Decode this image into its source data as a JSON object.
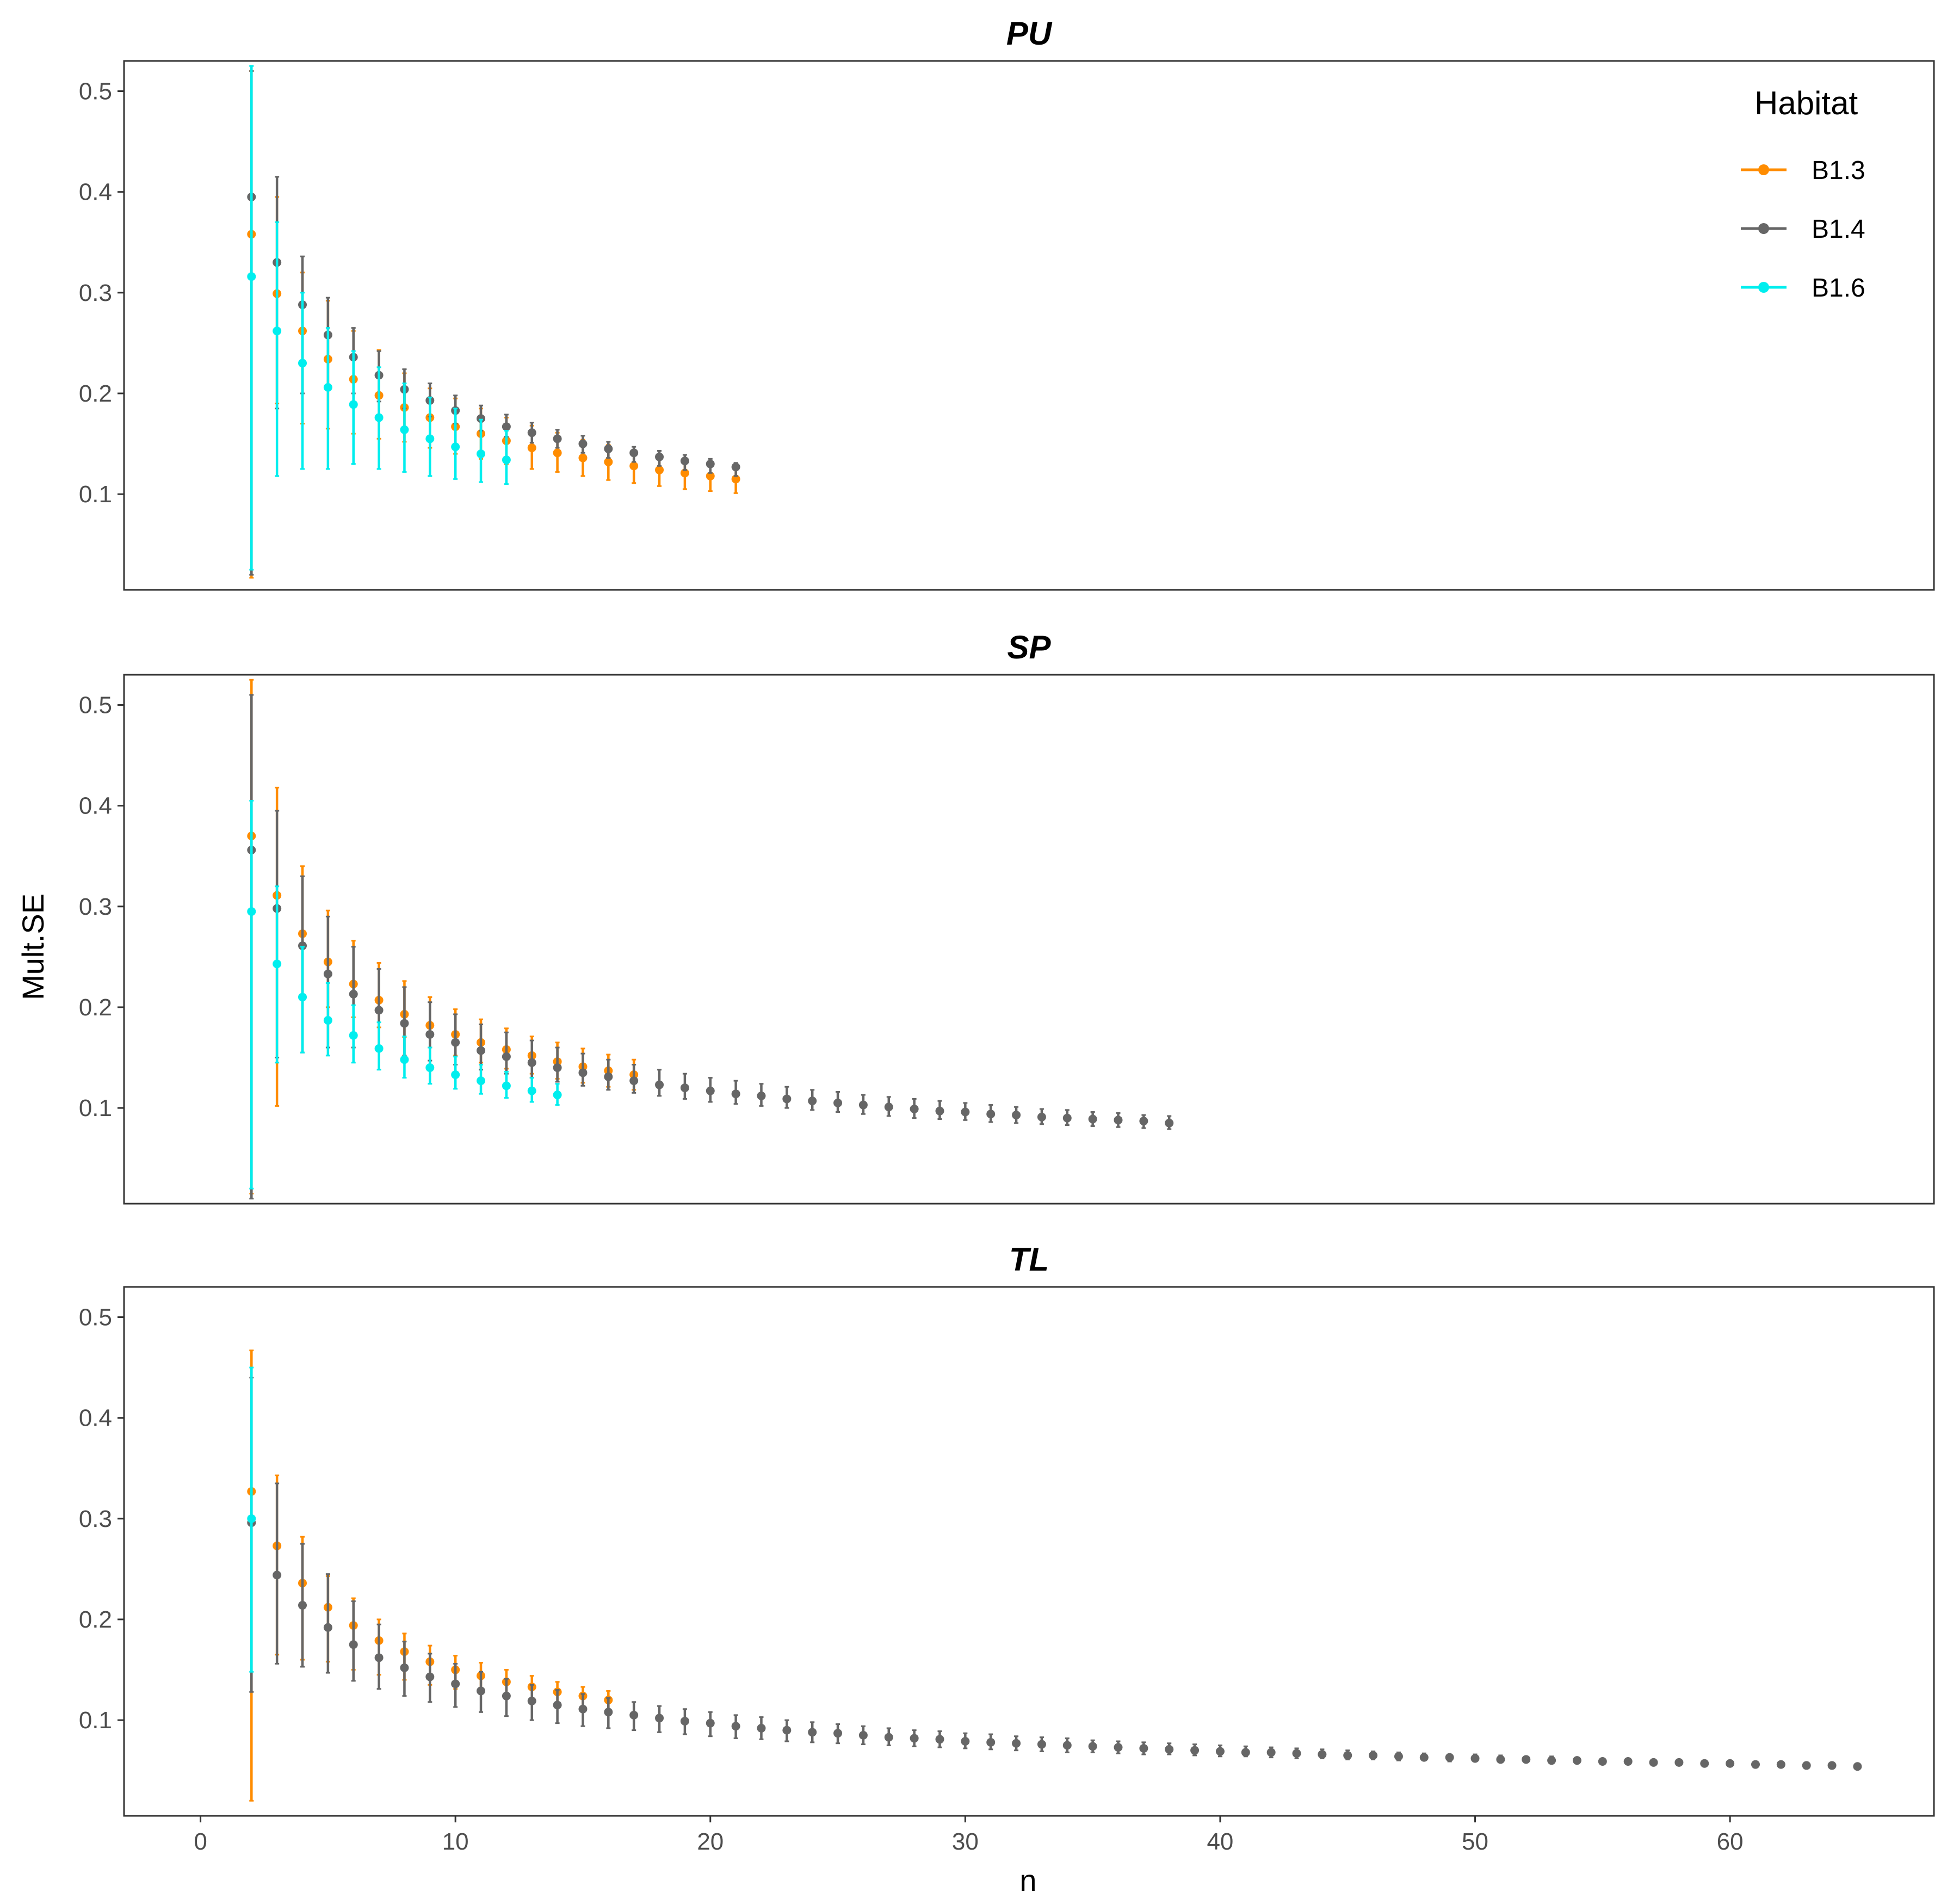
{
  "chart_data": {
    "type": "scatter",
    "ylabel": "Mult.SE",
    "xlabel": "n",
    "xlim": [
      -3,
      68
    ],
    "ylim": [
      0.005,
      0.53
    ],
    "xticks": [
      0,
      10,
      20,
      30,
      40,
      50,
      60
    ],
    "yticks": [
      0.1,
      0.2,
      0.3,
      0.4,
      0.5
    ],
    "legend": {
      "title": "Habitat",
      "position": "top-right",
      "entries": [
        {
          "name": "B1.3",
          "color": "#ff8c00"
        },
        {
          "name": "B1.4",
          "color": "#666666"
        },
        {
          "name": "B1.6",
          "color": "#00eeee"
        }
      ]
    },
    "panels": [
      {
        "title": "PU",
        "series": [
          {
            "name": "B1.3",
            "color": "#ff8c00",
            "n": [
              2,
              3,
              4,
              5,
              6,
              7,
              8,
              9,
              10,
              11,
              12,
              13,
              14,
              15,
              16,
              17,
              18,
              19,
              20,
              21
            ],
            "mean": [
              0.358,
              0.299,
              0.262,
              0.234,
              0.214,
              0.198,
              0.186,
              0.176,
              0.167,
              0.16,
              0.153,
              0.146,
              0.141,
              0.136,
              0.132,
              0.128,
              0.124,
              0.121,
              0.118,
              0.115
            ],
            "lower": [
              0.017,
              0.19,
              0.17,
              0.165,
              0.16,
              0.155,
              0.152,
              0.146,
              0.14,
              0.135,
              0.13,
              0.125,
              0.122,
              0.118,
              0.114,
              0.111,
              0.108,
              0.105,
              0.103,
              0.101
            ],
            "upper": [
              0.52,
              0.395,
              0.32,
              0.292,
              0.262,
              0.243,
              0.22,
              0.205,
              0.195,
              0.185,
              0.176,
              0.168,
              0.161,
              0.154,
              0.149,
              0.144,
              0.139,
              0.135,
              0.131,
              0.127
            ]
          },
          {
            "name": "B1.4",
            "color": "#666666",
            "n": [
              2,
              3,
              4,
              5,
              6,
              7,
              8,
              9,
              10,
              11,
              12,
              13,
              14,
              15,
              16,
              17,
              18,
              19,
              20,
              21
            ],
            "mean": [
              0.395,
              0.33,
              0.288,
              0.258,
              0.236,
              0.218,
              0.204,
              0.193,
              0.183,
              0.175,
              0.167,
              0.161,
              0.155,
              0.15,
              0.145,
              0.141,
              0.137,
              0.133,
              0.13,
              0.127
            ],
            "lower": [
              0.02,
              0.185,
              0.2,
              0.205,
              0.2,
              0.192,
              0.185,
              0.177,
              0.17,
              0.163,
              0.157,
              0.151,
              0.146,
              0.141,
              0.136,
              0.132,
              0.128,
              0.124,
              0.121,
              0.118
            ],
            "upper": [
              0.52,
              0.415,
              0.336,
              0.295,
              0.265,
              0.242,
              0.224,
              0.21,
              0.198,
              0.188,
              0.179,
              0.171,
              0.164,
              0.158,
              0.152,
              0.147,
              0.143,
              0.139,
              0.135,
              0.131
            ]
          },
          {
            "name": "B1.6",
            "color": "#00eeee",
            "n": [
              2,
              3,
              4,
              5,
              6,
              7,
              8,
              9,
              10,
              11,
              12
            ],
            "mean": [
              0.316,
              0.262,
              0.23,
              0.206,
              0.189,
              0.176,
              0.164,
              0.155,
              0.147,
              0.14,
              0.134
            ],
            "lower": [
              0.025,
              0.118,
              0.125,
              0.125,
              0.13,
              0.125,
              0.122,
              0.118,
              0.115,
              0.112,
              0.11
            ],
            "upper": [
              0.525,
              0.37,
              0.3,
              0.265,
              0.242,
              0.226,
              0.21,
              0.196,
              0.185,
              0.174,
              0.163
            ]
          }
        ]
      },
      {
        "title": "SP",
        "series": [
          {
            "name": "B1.3",
            "color": "#ff8c00",
            "n": [
              2,
              3,
              4,
              5,
              6,
              7,
              8,
              9,
              10,
              11,
              12,
              13,
              14,
              15,
              16,
              17
            ],
            "mean": [
              0.37,
              0.311,
              0.273,
              0.245,
              0.223,
              0.207,
              0.193,
              0.182,
              0.173,
              0.165,
              0.158,
              0.152,
              0.146,
              0.141,
              0.137,
              0.133
            ],
            "lower": [
              0.015,
              0.102,
              0.21,
              0.2,
              0.19,
              0.18,
              0.17,
              0.16,
              0.152,
              0.145,
              0.139,
              0.134,
              0.129,
              0.125,
              0.121,
              0.118
            ],
            "upper": [
              0.525,
              0.418,
              0.34,
              0.296,
              0.266,
              0.244,
              0.226,
              0.21,
              0.198,
              0.188,
              0.179,
              0.171,
              0.165,
              0.159,
              0.153,
              0.148
            ]
          },
          {
            "name": "B1.4",
            "color": "#666666",
            "n": [
              2,
              3,
              4,
              5,
              6,
              7,
              8,
              9,
              10,
              11,
              12,
              13,
              14,
              15,
              16,
              17,
              18,
              19,
              20,
              21,
              22,
              23,
              24,
              25,
              26,
              27,
              28,
              29,
              30,
              31,
              32,
              33,
              34,
              35,
              36,
              37,
              38
            ],
            "mean": [
              0.356,
              0.298,
              0.261,
              0.233,
              0.213,
              0.197,
              0.184,
              0.173,
              0.165,
              0.157,
              0.151,
              0.145,
              0.14,
              0.135,
              0.131,
              0.127,
              0.123,
              0.12,
              0.117,
              0.114,
              0.112,
              0.109,
              0.107,
              0.105,
              0.103,
              0.101,
              0.099,
              0.097,
              0.096,
              0.094,
              0.093,
              0.091,
              0.09,
              0.089,
              0.088,
              0.087,
              0.085
            ],
            "lower": [
              0.01,
              0.15,
              0.155,
              0.16,
              0.16,
              0.158,
              0.152,
              0.147,
              0.143,
              0.138,
              0.134,
              0.13,
              0.126,
              0.122,
              0.118,
              0.115,
              0.112,
              0.109,
              0.106,
              0.104,
              0.102,
              0.1,
              0.098,
              0.096,
              0.094,
              0.092,
              0.09,
              0.089,
              0.088,
              0.086,
              0.085,
              0.084,
              0.083,
              0.082,
              0.081,
              0.08,
              0.079
            ],
            "upper": [
              0.51,
              0.395,
              0.33,
              0.29,
              0.26,
              0.238,
              0.22,
              0.205,
              0.193,
              0.183,
              0.175,
              0.167,
              0.16,
              0.154,
              0.148,
              0.143,
              0.138,
              0.134,
              0.13,
              0.127,
              0.124,
              0.121,
              0.118,
              0.116,
              0.113,
              0.111,
              0.109,
              0.107,
              0.105,
              0.103,
              0.101,
              0.099,
              0.098,
              0.096,
              0.095,
              0.093,
              0.092
            ]
          },
          {
            "name": "B1.6",
            "color": "#00eeee",
            "n": [
              2,
              3,
              4,
              5,
              6,
              7,
              8,
              9,
              10,
              11,
              12,
              13,
              14
            ],
            "mean": [
              0.295,
              0.243,
              0.21,
              0.187,
              0.172,
              0.159,
              0.148,
              0.14,
              0.133,
              0.127,
              0.122,
              0.117,
              0.113
            ],
            "lower": [
              0.02,
              0.145,
              0.155,
              0.152,
              0.145,
              0.138,
              0.13,
              0.124,
              0.119,
              0.114,
              0.11,
              0.106,
              0.103
            ],
            "upper": [
              0.405,
              0.32,
              0.26,
              0.224,
              0.202,
              0.185,
              0.171,
              0.16,
              0.151,
              0.143,
              0.136,
              0.13,
              0.124
            ]
          }
        ]
      },
      {
        "title": "TL",
        "series": [
          {
            "name": "B1.3",
            "color": "#ff8c00",
            "n": [
              2,
              3,
              4,
              5,
              6,
              7,
              8,
              9,
              10,
              11,
              12,
              13,
              14,
              15,
              16
            ],
            "mean": [
              0.327,
              0.273,
              0.236,
              0.212,
              0.194,
              0.179,
              0.168,
              0.158,
              0.15,
              0.144,
              0.138,
              0.133,
              0.128,
              0.124,
              0.12
            ],
            "lower": [
              0.02,
              0.165,
              0.16,
              0.158,
              0.15,
              0.145,
              0.14,
              0.135,
              0.131,
              0.127,
              0.123,
              0.119,
              0.116,
              0.112,
              0.11
            ],
            "upper": [
              0.467,
              0.343,
              0.282,
              0.243,
              0.221,
              0.2,
              0.186,
              0.174,
              0.164,
              0.157,
              0.15,
              0.144,
              0.138,
              0.133,
              0.129
            ]
          },
          {
            "name": "B1.4",
            "color": "#666666",
            "n": [
              2,
              3,
              4,
              5,
              6,
              7,
              8,
              9,
              10,
              11,
              12,
              13,
              14,
              15,
              16,
              17,
              18,
              19,
              20,
              21,
              22,
              23,
              24,
              25,
              26,
              27,
              28,
              29,
              30,
              31,
              32,
              33,
              34,
              35,
              36,
              37,
              38,
              39,
              40,
              41,
              42,
              43,
              44,
              45,
              46,
              47,
              48,
              49,
              50,
              51,
              52,
              53,
              54,
              55,
              56,
              57,
              58,
              59,
              60,
              61,
              62,
              63,
              64,
              65
            ],
            "mean": [
              0.296,
              0.244,
              0.214,
              0.192,
              0.175,
              0.162,
              0.152,
              0.143,
              0.136,
              0.129,
              0.124,
              0.119,
              0.115,
              0.111,
              0.108,
              0.105,
              0.102,
              0.099,
              0.097,
              0.094,
              0.092,
              0.09,
              0.088,
              0.087,
              0.085,
              0.083,
              0.082,
              0.081,
              0.079,
              0.078,
              0.077,
              0.076,
              0.075,
              0.074,
              0.073,
              0.072,
              0.071,
              0.07,
              0.069,
              0.068,
              0.068,
              0.067,
              0.066,
              0.065,
              0.065,
              0.064,
              0.063,
              0.063,
              0.062,
              0.061,
              0.061,
              0.06,
              0.06,
              0.059,
              0.059,
              0.058,
              0.058,
              0.057,
              0.057,
              0.056,
              0.056,
              0.055,
              0.055,
              0.054
            ],
            "lower": [
              0.128,
              0.156,
              0.153,
              0.147,
              0.139,
              0.131,
              0.124,
              0.118,
              0.113,
              0.108,
              0.104,
              0.1,
              0.097,
              0.094,
              0.092,
              0.09,
              0.088,
              0.086,
              0.084,
              0.082,
              0.081,
              0.079,
              0.078,
              0.077,
              0.076,
              0.075,
              0.074,
              0.073,
              0.072,
              0.071,
              0.07,
              0.069,
              0.068,
              0.068,
              0.067,
              0.066,
              0.066,
              0.065,
              0.064,
              0.064,
              0.063,
              0.062,
              0.062,
              0.061,
              0.061,
              0.06,
              0.06,
              0.059,
              0.059,
              0.058,
              0.058,
              0.057,
              0.057,
              0.056,
              0.056,
              0.055,
              0.055,
              0.055,
              0.054,
              0.054,
              0.053,
              0.053,
              0.053,
              0.052
            ],
            "upper": [
              0.44,
              0.335,
              0.275,
              0.245,
              0.218,
              0.195,
              0.178,
              0.166,
              0.156,
              0.148,
              0.141,
              0.135,
              0.13,
              0.126,
              0.122,
              0.118,
              0.114,
              0.111,
              0.108,
              0.105,
              0.103,
              0.1,
              0.098,
              0.096,
              0.094,
              0.092,
              0.09,
              0.089,
              0.087,
              0.086,
              0.084,
              0.083,
              0.082,
              0.08,
              0.079,
              0.078,
              0.077,
              0.076,
              0.075,
              0.074,
              0.073,
              0.072,
              0.071,
              0.07,
              0.069,
              0.068,
              0.067,
              0.066,
              0.066,
              0.065,
              0.064,
              0.064,
              0.063,
              0.062,
              0.062,
              0.061,
              0.061,
              0.06,
              0.059,
              0.059,
              0.058,
              0.058,
              0.057,
              0.057
            ]
          },
          {
            "name": "B1.6",
            "color": "#00eeee",
            "n": [
              2
            ],
            "mean": [
              0.3
            ],
            "lower": [
              0.148
            ],
            "upper": [
              0.45
            ]
          }
        ]
      }
    ]
  }
}
